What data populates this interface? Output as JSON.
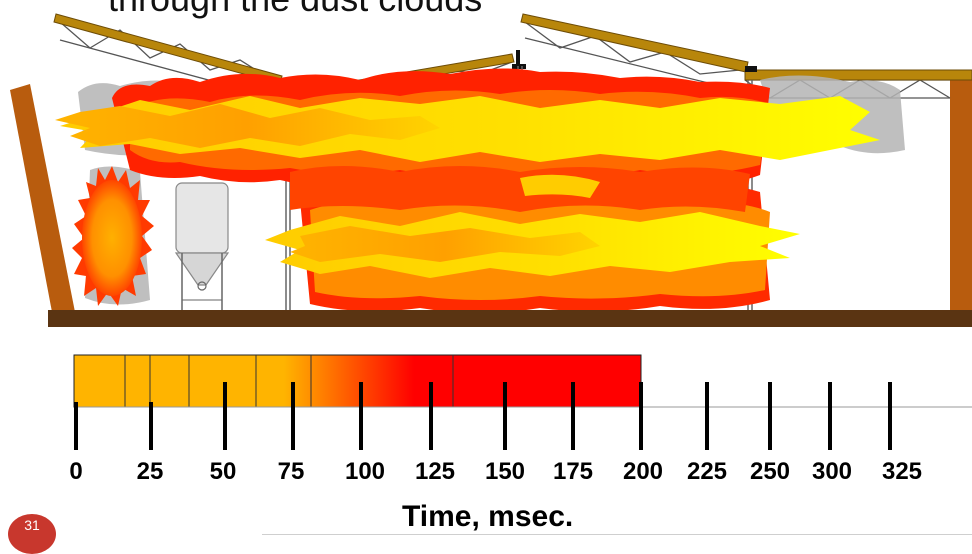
{
  "title_partial": "through the dust clouds",
  "axis": {
    "title": "Time, msec.",
    "ticks": [
      "0",
      "25",
      "50",
      "75",
      "100",
      "125",
      "150",
      "175",
      "200",
      "225",
      "250",
      "300",
      "325"
    ]
  },
  "slide_number": "31",
  "colors": {
    "flame_red": "#ff1a00",
    "flame_orange": "#ff7a00",
    "flame_yellow": "#ffee00",
    "timebar_orange": "#ffb400",
    "timebar_red": "#ff0000",
    "wood": "#b85c0e",
    "floor": "#5a3412",
    "truss_wood": "#b8860b"
  }
}
